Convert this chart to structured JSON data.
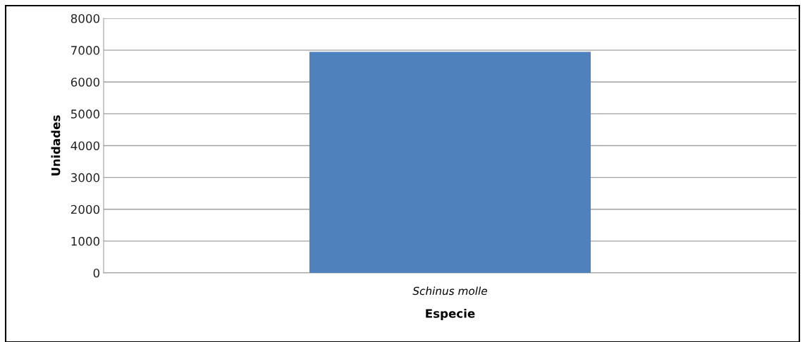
{
  "chart_data": {
    "type": "bar",
    "xlabel": "Especie",
    "ylabel": "Unidades",
    "categories": [
      "Schinus molle"
    ],
    "values": [
      6950
    ],
    "color": "#4f81bd",
    "ylim": [
      0,
      8000
    ],
    "yticks": [
      0,
      1000,
      2000,
      3000,
      4000,
      5000,
      6000,
      7000,
      8000
    ],
    "grid": "y"
  }
}
